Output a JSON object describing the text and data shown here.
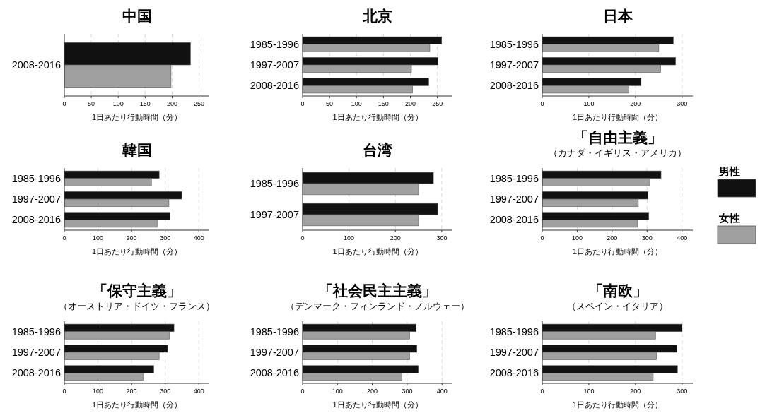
{
  "chart_data": [
    {
      "type": "bar",
      "orientation": "horizontal",
      "title": "中国",
      "xlabel": "1日あたり行動時間（分）",
      "categories": [
        "2008-2016"
      ],
      "grid": "x",
      "xlim": [
        0,
        269
      ],
      "xticks": [
        0,
        50,
        100,
        150,
        200,
        250
      ],
      "series": [
        {
          "color": "#111111",
          "values": [
            234
          ]
        },
        {
          "color": "#a0a0a0",
          "values": [
            198
          ]
        }
      ]
    },
    {
      "type": "bar",
      "orientation": "horizontal",
      "title": "北京",
      "xlabel": "1日あたり行動時間（分）",
      "categories": [
        "1985-1996",
        "1997-2007",
        "2008-2016"
      ],
      "grid": "x",
      "xlim": [
        0,
        278
      ],
      "xticks": [
        0,
        50,
        100,
        150,
        200,
        250
      ],
      "series": [
        {
          "color": "#111111",
          "values": [
            258,
            251,
            234
          ]
        },
        {
          "color": "#a0a0a0",
          "values": [
            236,
            202,
            204
          ]
        }
      ]
    },
    {
      "type": "bar",
      "orientation": "horizontal",
      "title": "日本",
      "xlabel": "1日あたり行動時間（分）",
      "categories": [
        "1985-1996",
        "1997-2007",
        "2008-2016"
      ],
      "grid": "x",
      "xlim": [
        0,
        323
      ],
      "xticks": [
        0,
        100,
        200,
        300
      ],
      "series": [
        {
          "color": "#111111",
          "values": [
            281,
            286,
            212
          ]
        },
        {
          "color": "#a0a0a0",
          "values": [
            250,
            254,
            186
          ]
        }
      ]
    },
    {
      "type": "bar",
      "orientation": "horizontal",
      "title": "韓国",
      "xlabel": "1日あたり行動時間（分）",
      "categories": [
        "1985-1996",
        "1997-2007",
        "2008-2016"
      ],
      "grid": "x",
      "xlim": [
        0,
        431
      ],
      "xticks": [
        0,
        100,
        200,
        300,
        400
      ],
      "series": [
        {
          "color": "#111111",
          "values": [
            282,
            349,
            314
          ]
        },
        {
          "color": "#a0a0a0",
          "values": [
            259,
            311,
            276
          ]
        }
      ]
    },
    {
      "type": "bar",
      "orientation": "horizontal",
      "title": "台湾",
      "xlabel": "1日あたり行動時間（分）",
      "categories": [
        "1985-1996",
        "1997-2007"
      ],
      "grid": "x",
      "xlim": [
        0,
        323
      ],
      "xticks": [
        0,
        100,
        200,
        300
      ],
      "series": [
        {
          "color": "#111111",
          "values": [
            282,
            291
          ]
        },
        {
          "color": "#a0a0a0",
          "values": [
            250,
            250
          ]
        }
      ]
    },
    {
      "type": "bar",
      "orientation": "horizontal",
      "title": "「自由主義」",
      "subtitle": "（カナダ・イギリス・アメリカ）",
      "xlabel": "1日あたり行動時間（分）",
      "categories": [
        "1985-1996",
        "1997-2007",
        "2008-2016"
      ],
      "grid": "x",
      "xlim": [
        0,
        431
      ],
      "xticks": [
        0,
        100,
        200,
        300,
        400
      ],
      "legend": "right",
      "series": [
        {
          "name": "男性",
          "color": "#111111",
          "values": [
            340,
            302,
            305
          ]
        },
        {
          "name": "女性",
          "color": "#a0a0a0",
          "values": [
            308,
            275,
            273
          ]
        }
      ]
    },
    {
      "type": "bar",
      "orientation": "horizontal",
      "title": "「保守主義」",
      "subtitle": "（オーストリア・ドイツ・フランス）",
      "xlabel": "1日あたり行動時間（分）",
      "categories": [
        "1985-1996",
        "1997-2007",
        "2008-2016"
      ],
      "grid": "x",
      "xlim": [
        0,
        431
      ],
      "xticks": [
        0,
        100,
        200,
        300,
        400
      ],
      "series": [
        {
          "color": "#111111",
          "values": [
            326,
            307,
            266
          ]
        },
        {
          "color": "#a0a0a0",
          "values": [
            312,
            282,
            234
          ]
        }
      ]
    },
    {
      "type": "bar",
      "orientation": "horizontal",
      "title": "「社会民主主義」",
      "subtitle": "（デンマーク・フィンランド・ノルウェー）",
      "xlabel": "1日あたり行動時間（分）",
      "categories": [
        "1985-1996",
        "1997-2007",
        "2008-2016"
      ],
      "grid": "x",
      "xlim": [
        0,
        430
      ],
      "xticks": [
        0,
        100,
        200,
        300,
        400
      ],
      "series": [
        {
          "color": "#111111",
          "values": [
            326,
            328,
            332
          ]
        },
        {
          "color": "#a0a0a0",
          "values": [
            307,
            307,
            285
          ]
        }
      ]
    },
    {
      "type": "bar",
      "orientation": "horizontal",
      "title": "「南欧」",
      "subtitle": "（スペイン・イタリア）",
      "xlabel": "1日あたり行動時間（分）",
      "categories": [
        "1985-1996",
        "1997-2007",
        "2008-2016"
      ],
      "grid": "x",
      "xlim": [
        0,
        323
      ],
      "xticks": [
        0,
        100,
        200,
        300
      ],
      "series": [
        {
          "color": "#111111",
          "values": [
            300,
            289,
            290
          ]
        },
        {
          "color": "#a0a0a0",
          "values": [
            243,
            245,
            238
          ]
        }
      ]
    }
  ]
}
